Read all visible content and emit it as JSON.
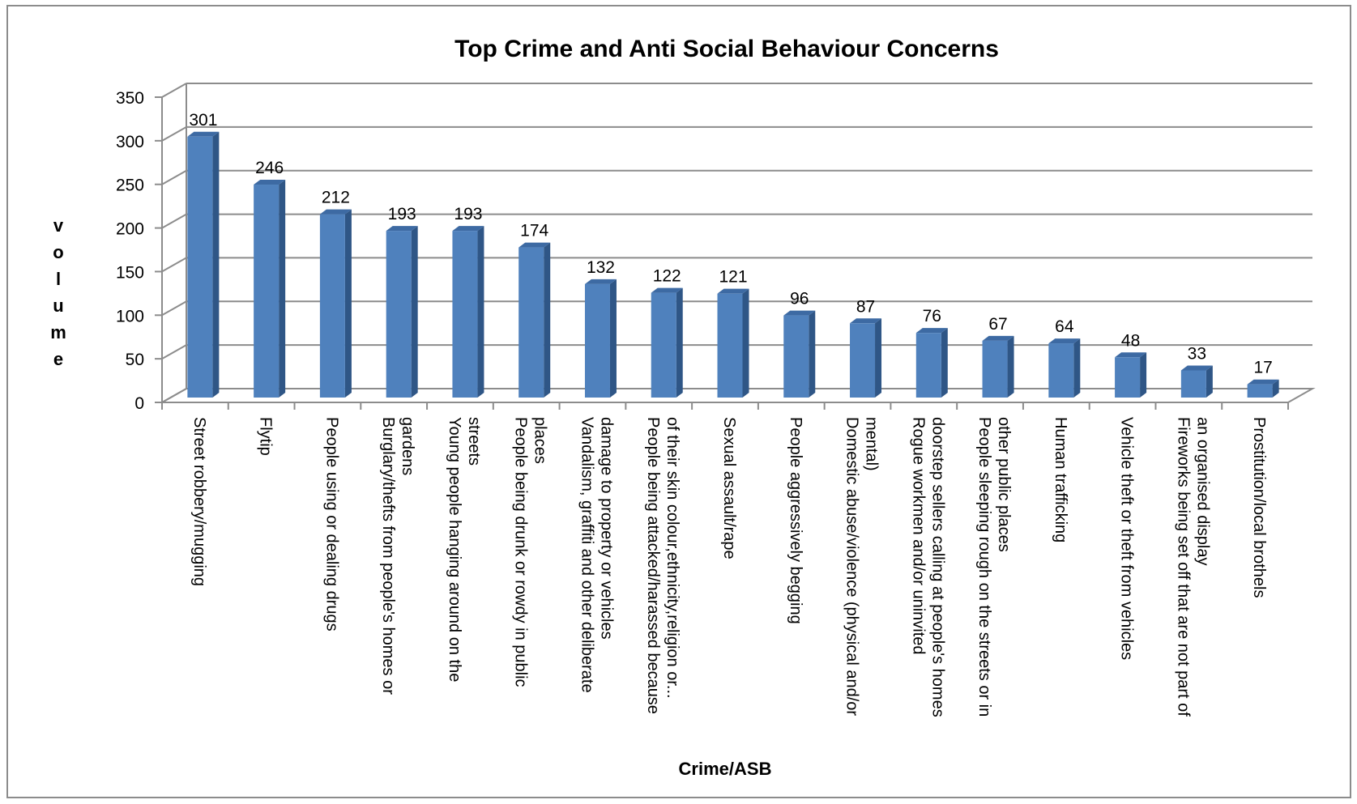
{
  "chart_data": {
    "type": "bar",
    "title": "Top Crime and Anti Social Behaviour Concerns",
    "xlabel": "Crime/ASB",
    "ylabel": "volume",
    "ylim": [
      0,
      350
    ],
    "yticks": [
      0,
      50,
      100,
      150,
      200,
      250,
      300,
      350
    ],
    "ytick_labels": [
      "0",
      "50",
      "100",
      "150",
      "200",
      "250",
      "300",
      "350"
    ],
    "grid": true,
    "legend": "none",
    "bar_color": "#4f81bd",
    "categories": [
      [
        "Street robbery/mugging"
      ],
      [
        "Flytip"
      ],
      [
        "People using or dealing drugs"
      ],
      [
        "Burglary/thefts from people's homes or",
        "gardens"
      ],
      [
        "Young people hanging around on the",
        "streets"
      ],
      [
        "People being drunk or rowdy in public",
        "places"
      ],
      [
        "Vandalism, graffiti and other deliberate",
        "damage to property or vehicles"
      ],
      [
        "People being attacked/harassed because",
        "of their skin colour,ethnicity,religion or..."
      ],
      [
        "Sexual assault/rape"
      ],
      [
        "People aggressively begging"
      ],
      [
        "Domestic abuse/violence (physical and/or",
        "mental)"
      ],
      [
        "Rogue workmen and/or uninvited",
        "doorstep sellers calling at people's homes"
      ],
      [
        "People sleeping rough on the streets or in",
        "other public places"
      ],
      [
        "Human trafficking"
      ],
      [
        "Vehicle theft or theft from vehicles"
      ],
      [
        "Fireworks being set off that are not part of",
        "an organised display"
      ],
      [
        "Prostitution/local brothels"
      ]
    ],
    "values": [
      301,
      246,
      212,
      193,
      193,
      174,
      132,
      122,
      121,
      96,
      87,
      76,
      67,
      64,
      48,
      33,
      17
    ],
    "value_labels": [
      "301",
      "246",
      "212",
      "193",
      "193",
      "174",
      "132",
      "122",
      "121",
      "96",
      "87",
      "76",
      "67",
      "64",
      "48",
      "33",
      "17"
    ]
  }
}
